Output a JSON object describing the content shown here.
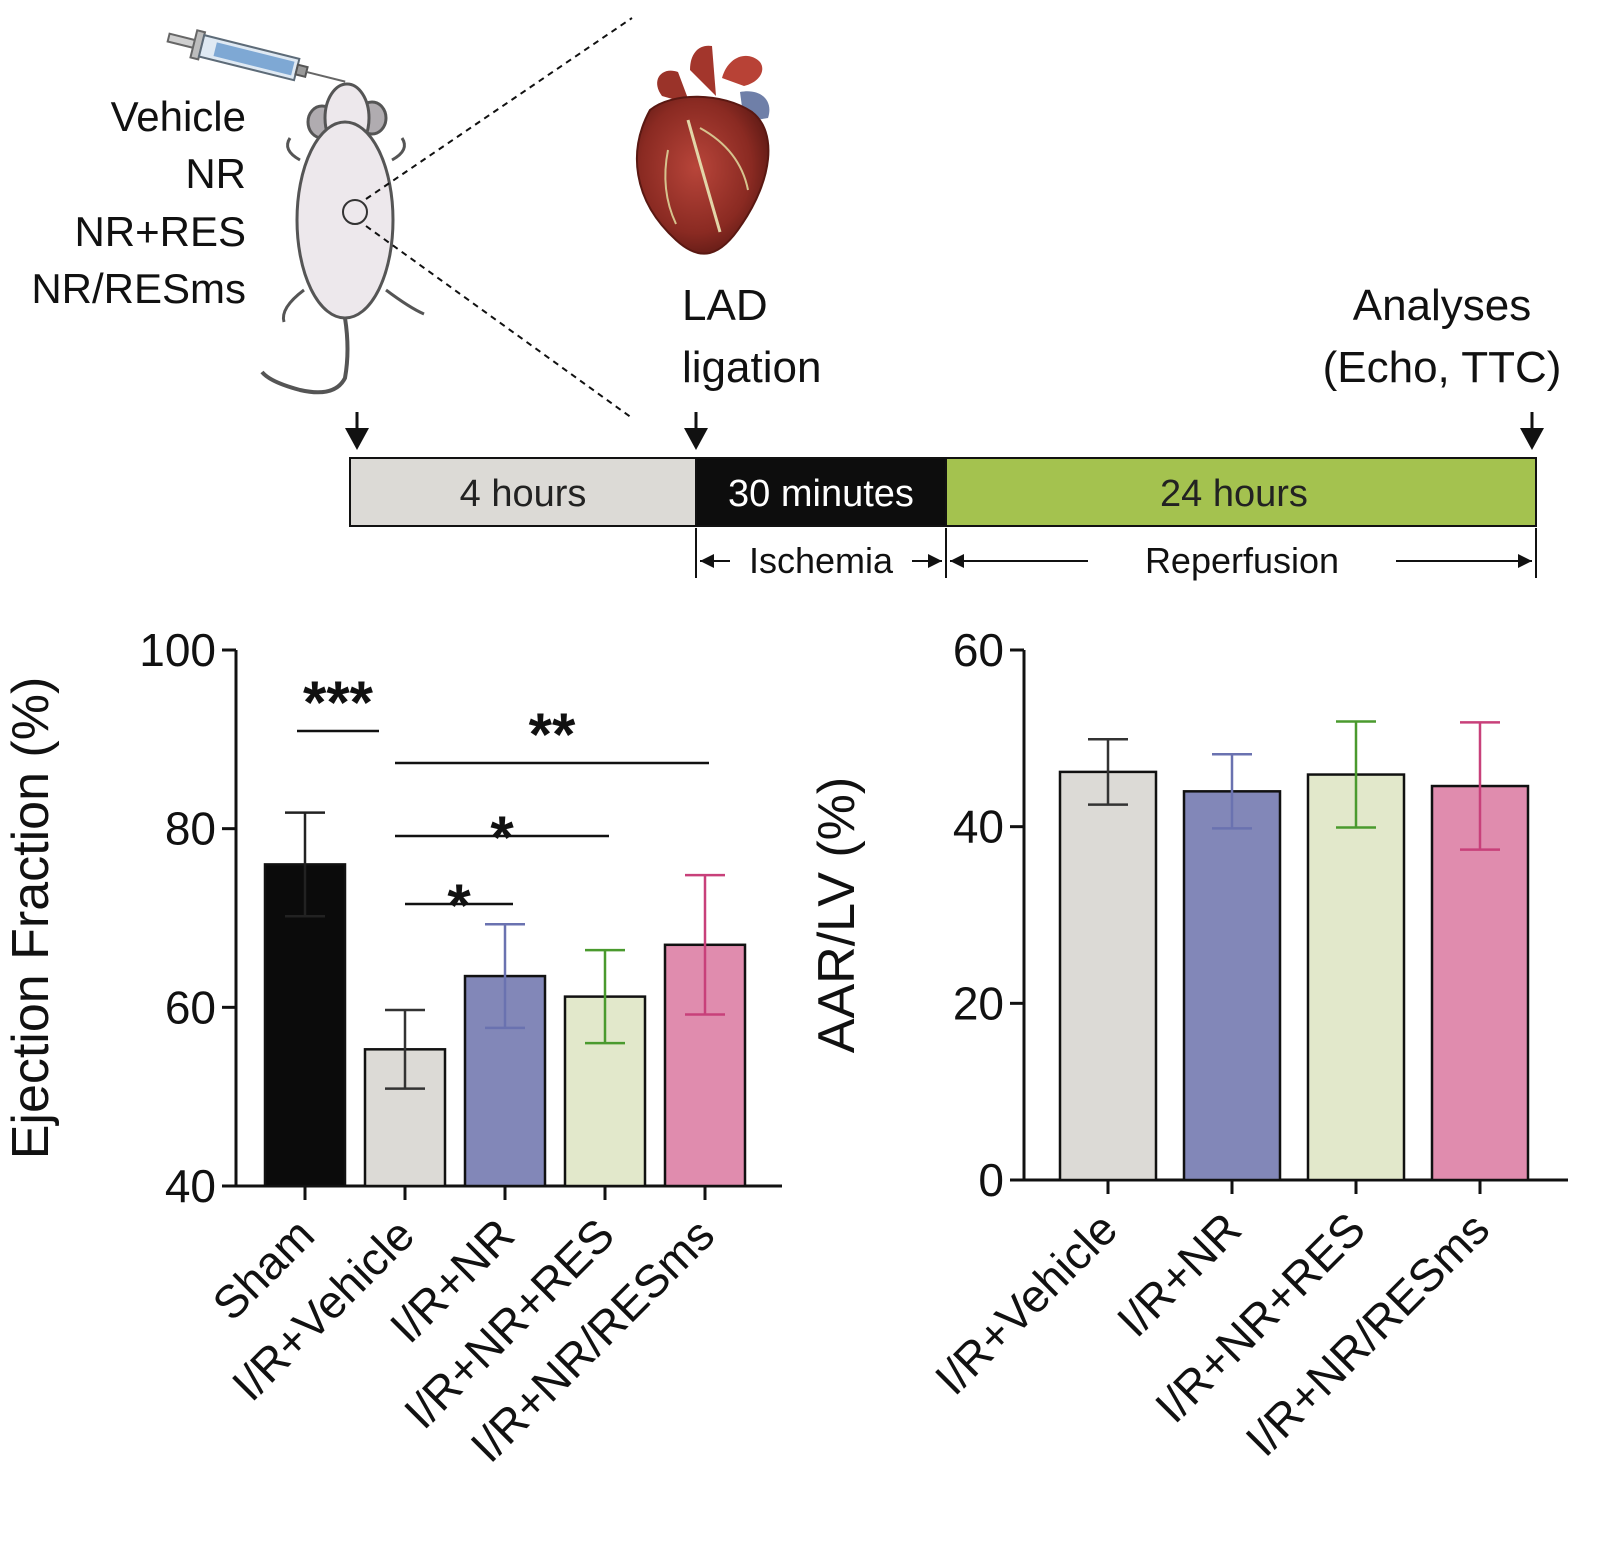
{
  "groups_list": [
    "Vehicle",
    "NR",
    "NR+RES",
    "NR/RESms"
  ],
  "timeline": {
    "event_ligation": [
      "LAD",
      "ligation"
    ],
    "event_analyses": [
      "Analyses",
      "(Echo, TTC)"
    ],
    "segments": [
      {
        "label": "4 hours",
        "color": "#dcdad6",
        "text_color": "#222222"
      },
      {
        "label": "30 minutes",
        "color": "#0d0d0d",
        "text_color": "#ffffff"
      },
      {
        "label": "24 hours",
        "color": "#a4c24f",
        "text_color": "#222222"
      }
    ],
    "phase_ischemia": "Ischemia",
    "phase_reperfusion": "Reperfusion"
  },
  "chart_data": [
    {
      "type": "bar",
      "ylabel": "Ejection Fraction (%)",
      "ylim": [
        40,
        100
      ],
      "yticks": [
        "40",
        "60",
        "80",
        "100"
      ],
      "categories": [
        "Sham",
        "I/R+Vehicle",
        "I/R+NR",
        "I/R+NR+RES",
        "I/R+NR/RESms"
      ],
      "values": [
        76,
        55.3,
        63.5,
        61.2,
        67
      ],
      "errors": [
        5.8,
        4.4,
        5.8,
        5.2,
        7.8
      ],
      "bar_colors": [
        "#0b0b0b",
        "#dcdad6",
        "#8287b8",
        "#e2e8cb",
        "#e08cae"
      ],
      "error_colors": [
        "#222222",
        "#333333",
        "#6a72b0",
        "#4a9a2e",
        "#c8407a"
      ],
      "significance": [
        {
          "from": "Sham",
          "to": "I/R+Vehicle",
          "label": "***"
        },
        {
          "from": "I/R+Vehicle",
          "to": "I/R+NR/RESms",
          "label": "**"
        },
        {
          "from": "I/R+Vehicle",
          "to": "I/R+NR+RES",
          "label": "*"
        },
        {
          "from": "I/R+Vehicle",
          "to": "I/R+NR",
          "label": "*"
        }
      ]
    },
    {
      "type": "bar",
      "ylabel": "AAR/LV (%)",
      "ylim": [
        0,
        60
      ],
      "yticks": [
        "0",
        "20",
        "40",
        "60"
      ],
      "categories": [
        "I/R+Vehicle",
        "I/R+NR",
        "I/R+NR+RES",
        "I/R+NR/RESms"
      ],
      "values": [
        46.2,
        44,
        45.9,
        44.6
      ],
      "errors": [
        3.7,
        4.2,
        6,
        7.2
      ],
      "bar_colors": [
        "#dcdad6",
        "#8287b8",
        "#e2e8cb",
        "#e08cae"
      ],
      "error_colors": [
        "#333333",
        "#6a72b0",
        "#4a9a2e",
        "#c8407a"
      ]
    }
  ]
}
